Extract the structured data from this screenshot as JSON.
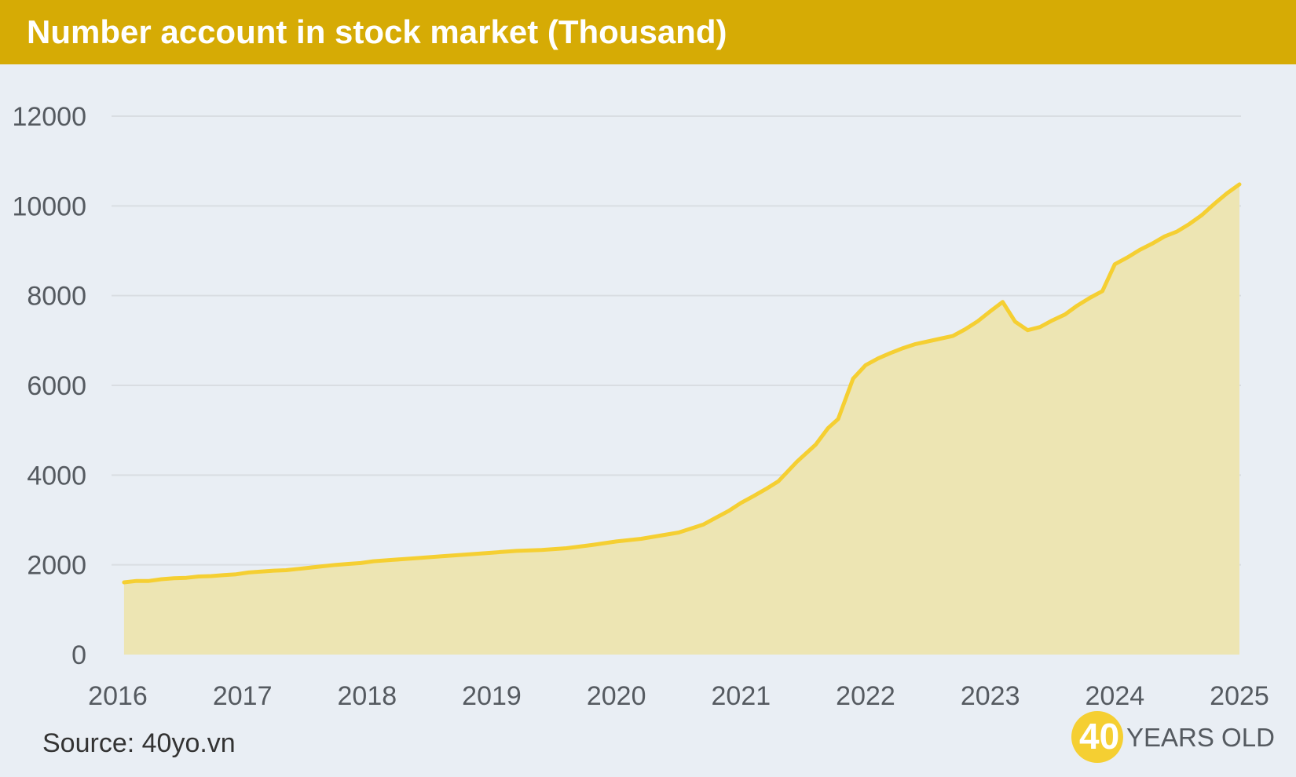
{
  "header": {
    "title": "Number account in stock market (Thousand)"
  },
  "footer": {
    "source": "Source: 40yo.vn"
  },
  "logo": {
    "number": "40",
    "text": "YEARS OLD"
  },
  "colors": {
    "header": "#d6ab05",
    "line": "#f5cf32",
    "area": "#ede5b3",
    "background": "#e9eef4",
    "grid": "#d9dde2"
  },
  "chart_data": {
    "type": "area",
    "title": "Number account in stock market (Thousand)",
    "xlabel": "",
    "ylabel": "",
    "xlim": [
      2016,
      2025
    ],
    "ylim": [
      0,
      12000
    ],
    "grid": true,
    "x_ticks": [
      "2016",
      "2017",
      "2018",
      "2019",
      "2020",
      "2021",
      "2022",
      "2023",
      "2024",
      "2025"
    ],
    "y_ticks": [
      "0",
      "2000",
      "4000",
      "6000",
      "8000",
      "10000",
      "12000"
    ],
    "series": [
      {
        "name": "Number account",
        "x": [
          2016.05,
          2016.15,
          2016.25,
          2016.35,
          2016.45,
          2016.55,
          2016.65,
          2016.75,
          2016.85,
          2016.95,
          2017.05,
          2017.15,
          2017.25,
          2017.35,
          2017.45,
          2017.55,
          2017.65,
          2017.75,
          2017.85,
          2017.95,
          2018.05,
          2018.2,
          2018.4,
          2018.6,
          2018.8,
          2019.0,
          2019.2,
          2019.4,
          2019.6,
          2019.8,
          2020.0,
          2020.2,
          2020.35,
          2020.5,
          2020.6,
          2020.7,
          2020.8,
          2020.9,
          2021.0,
          2021.1,
          2021.2,
          2021.3,
          2021.45,
          2021.6,
          2021.7,
          2021.78,
          2021.9,
          2022.0,
          2022.1,
          2022.2,
          2022.3,
          2022.4,
          2022.5,
          2022.6,
          2022.7,
          2022.8,
          2022.9,
          2023.0,
          2023.1,
          2023.2,
          2023.3,
          2023.4,
          2023.5,
          2023.6,
          2023.7,
          2023.8,
          2023.9,
          2024.0,
          2024.1,
          2024.2,
          2024.3,
          2024.4,
          2024.5,
          2024.6,
          2024.7,
          2024.8,
          2024.9,
          2025.0
        ],
        "values": [
          1610,
          1640,
          1640,
          1680,
          1700,
          1710,
          1740,
          1750,
          1770,
          1790,
          1830,
          1850,
          1870,
          1880,
          1910,
          1940,
          1970,
          2000,
          2020,
          2040,
          2080,
          2110,
          2150,
          2190,
          2230,
          2270,
          2310,
          2330,
          2370,
          2440,
          2520,
          2580,
          2650,
          2720,
          2810,
          2900,
          3050,
          3200,
          3380,
          3530,
          3690,
          3860,
          4300,
          4680,
          5050,
          5250,
          6150,
          6450,
          6600,
          6720,
          6830,
          6920,
          6980,
          7040,
          7100,
          7250,
          7430,
          7650,
          7860,
          7420,
          7230,
          7300,
          7450,
          7580,
          7780,
          7950,
          8100,
          8700,
          8850,
          9020,
          9160,
          9320,
          9430,
          9600,
          9800,
          10050,
          10280,
          10480
        ]
      }
    ]
  }
}
